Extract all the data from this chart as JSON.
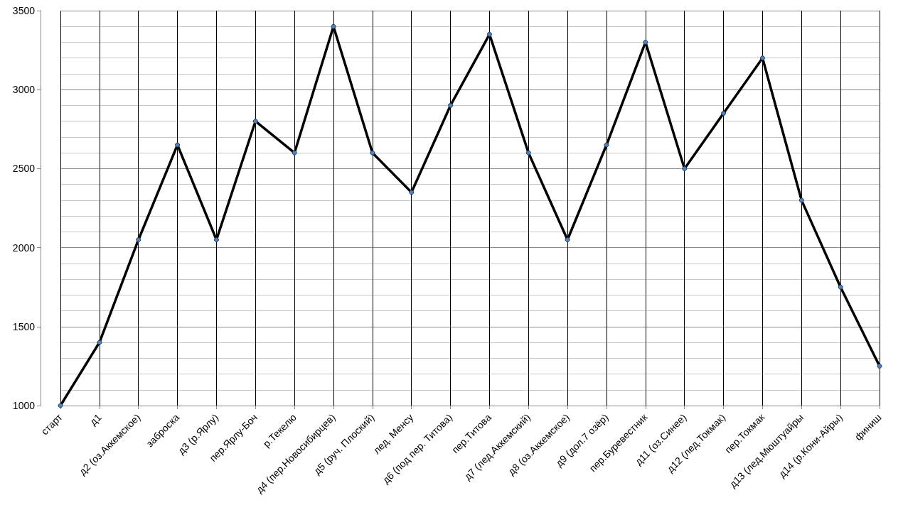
{
  "chart_data": {
    "type": "line",
    "categories": [
      "старт",
      "д1",
      "д2 (оз.Аккемское)",
      "заброска",
      "д3 (р.Ярлу)",
      "пер.Ярлу-Боч",
      "р.Текелю",
      "д4 (пер.Новосибирцев)",
      "д5 (руч. Плоский)",
      "лед. Менсу",
      "д6 (под пер. Титова)",
      "пер.Титова",
      "д7 (лед.Аккемский)",
      "д8 (оз.Аккемское)",
      "д9 (дол.7 озёр)",
      "пер.Буревестник",
      "д11 (оз.Синее)",
      "д12 (лед.Токмак)",
      "пер.Токмак",
      "д13 (лед.Мюштуайры",
      "д14 (р.Кони-Айры)",
      "финиш"
    ],
    "series": [
      {
        "color": "#000000",
        "values": [
          1000,
          1400,
          2050,
          2650,
          2050,
          2800,
          2600,
          3400,
          2600,
          2350,
          2900,
          3350,
          2600,
          2050,
          2650,
          3300,
          2500,
          2850,
          3200,
          2300,
          1750,
          1250
        ]
      }
    ],
    "ylim": [
      1000,
      3500
    ],
    "yticks": [
      1000,
      1500,
      2000,
      2500,
      3000,
      3500
    ],
    "grid": true,
    "marker": "circle",
    "line_style": "solid"
  }
}
